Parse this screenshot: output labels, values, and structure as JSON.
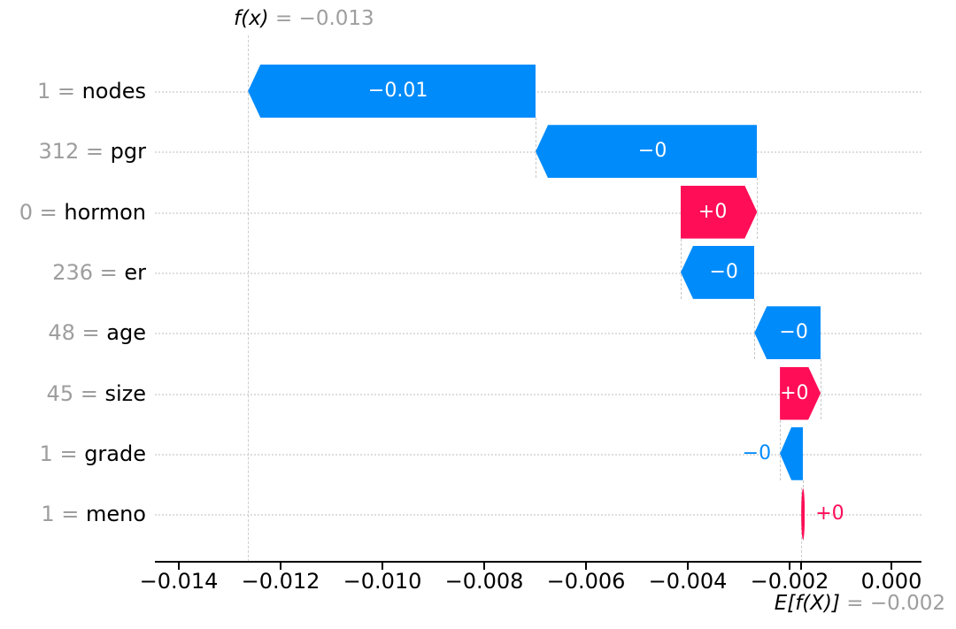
{
  "title": {
    "fx_label": "f(x)",
    "fx_equals": " = −0.013"
  },
  "base_annotation": {
    "efx_label": "E[f(X)]",
    "efx_equals": " = −0.002"
  },
  "colors": {
    "positive": "#ff0d57",
    "negative": "#008bfb",
    "muted_text": "#9e9e9e",
    "gridline": "#dedede",
    "connector": "#c8c8c8",
    "axis": "#000000",
    "bar_label_inside": "#ffffff"
  },
  "chart_data": {
    "type": "bar",
    "subtype": "shap-waterfall",
    "fx_display": "−0.013",
    "base_display": "−0.002",
    "base_value": -0.00177,
    "fx_value": -0.01264,
    "xlim": [
      -0.0145,
      0.0006
    ],
    "x_ticks": [
      -0.014,
      -0.012,
      -0.01,
      -0.008,
      -0.006,
      -0.004,
      -0.002,
      0.0
    ],
    "x_tick_labels": [
      "−0.014",
      "−0.012",
      "−0.010",
      "−0.008",
      "−0.006",
      "−0.004",
      "−0.002",
      "0.000"
    ],
    "label_separator": " = ",
    "grid": "dotted-horizontal-per-row",
    "features": [
      {
        "name": "nodes",
        "data_value": "1",
        "shap_value": -0.00565,
        "label": "−0.01",
        "sign": "negative",
        "label_position": "inside"
      },
      {
        "name": "pgr",
        "data_value": "312",
        "shap_value": -0.00435,
        "label": "−0",
        "sign": "negative",
        "label_position": "inside"
      },
      {
        "name": "hormon",
        "data_value": "0",
        "shap_value": 0.0015,
        "label": "+0",
        "sign": "positive",
        "label_position": "inside"
      },
      {
        "name": "er",
        "data_value": "236",
        "shap_value": -0.00145,
        "label": "−0",
        "sign": "negative",
        "label_position": "inside"
      },
      {
        "name": "age",
        "data_value": "48",
        "shap_value": -0.0013,
        "label": "−0",
        "sign": "negative",
        "label_position": "inside"
      },
      {
        "name": "size",
        "data_value": "45",
        "shap_value": 0.0008,
        "label": "+0",
        "sign": "positive",
        "label_position": "inside"
      },
      {
        "name": "grade",
        "data_value": "1",
        "shap_value": -0.00045,
        "label": "−0",
        "sign": "negative",
        "label_position": "outside-left"
      },
      {
        "name": "meno",
        "data_value": "1",
        "shap_value": 3e-05,
        "label": "+0",
        "sign": "positive",
        "label_position": "outside-right"
      }
    ]
  }
}
